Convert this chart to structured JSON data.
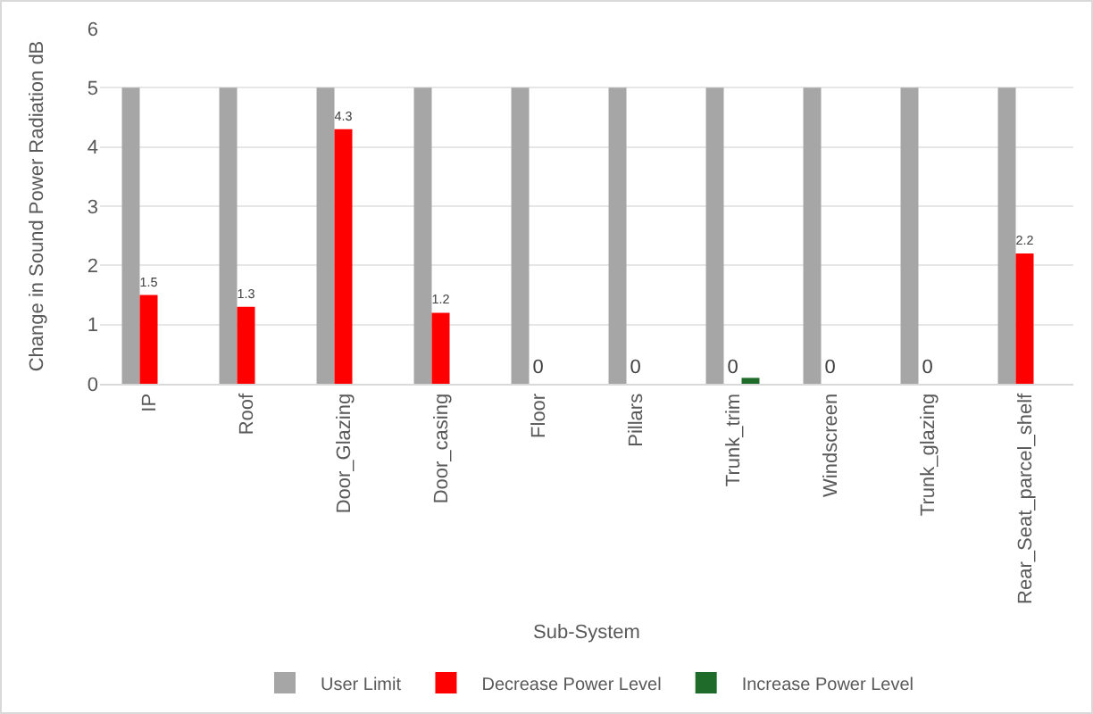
{
  "chart_data": {
    "type": "bar",
    "xlabel": "Sub-System",
    "ylabel": "Change in Sound Power Radiation dB",
    "categories": [
      "IP",
      "Roof",
      "Door_Glazing",
      "Door_casing",
      "Floor",
      "Pillars",
      "Trunk_trim",
      "Windscreen",
      "Trunk_glazing",
      "Rear_Seat_parcel_shelf"
    ],
    "series": [
      {
        "name": "User Limit",
        "color": "#a6a6a6",
        "values": [
          5,
          5,
          5,
          5,
          5,
          5,
          5,
          5,
          5,
          5
        ]
      },
      {
        "name": "Decrease Power Level",
        "color": "#ff0000",
        "values": [
          1.5,
          1.3,
          4.3,
          1.2,
          0,
          0,
          0,
          0,
          0,
          2.2
        ],
        "value_labels": [
          "1.5",
          "1.3",
          "4.3",
          "1.2",
          "0",
          "0",
          "0",
          "0",
          "0",
          "2.2"
        ]
      },
      {
        "name": "Increase Power Level",
        "color": "#1e6b2a",
        "values": [
          0,
          0,
          0,
          0,
          0,
          0,
          0.1,
          0,
          0,
          0
        ]
      }
    ],
    "ylim": [
      0,
      6
    ],
    "yticks": [
      0,
      1,
      2,
      3,
      4,
      5,
      6
    ],
    "grid": "y",
    "legend": "bottom"
  }
}
